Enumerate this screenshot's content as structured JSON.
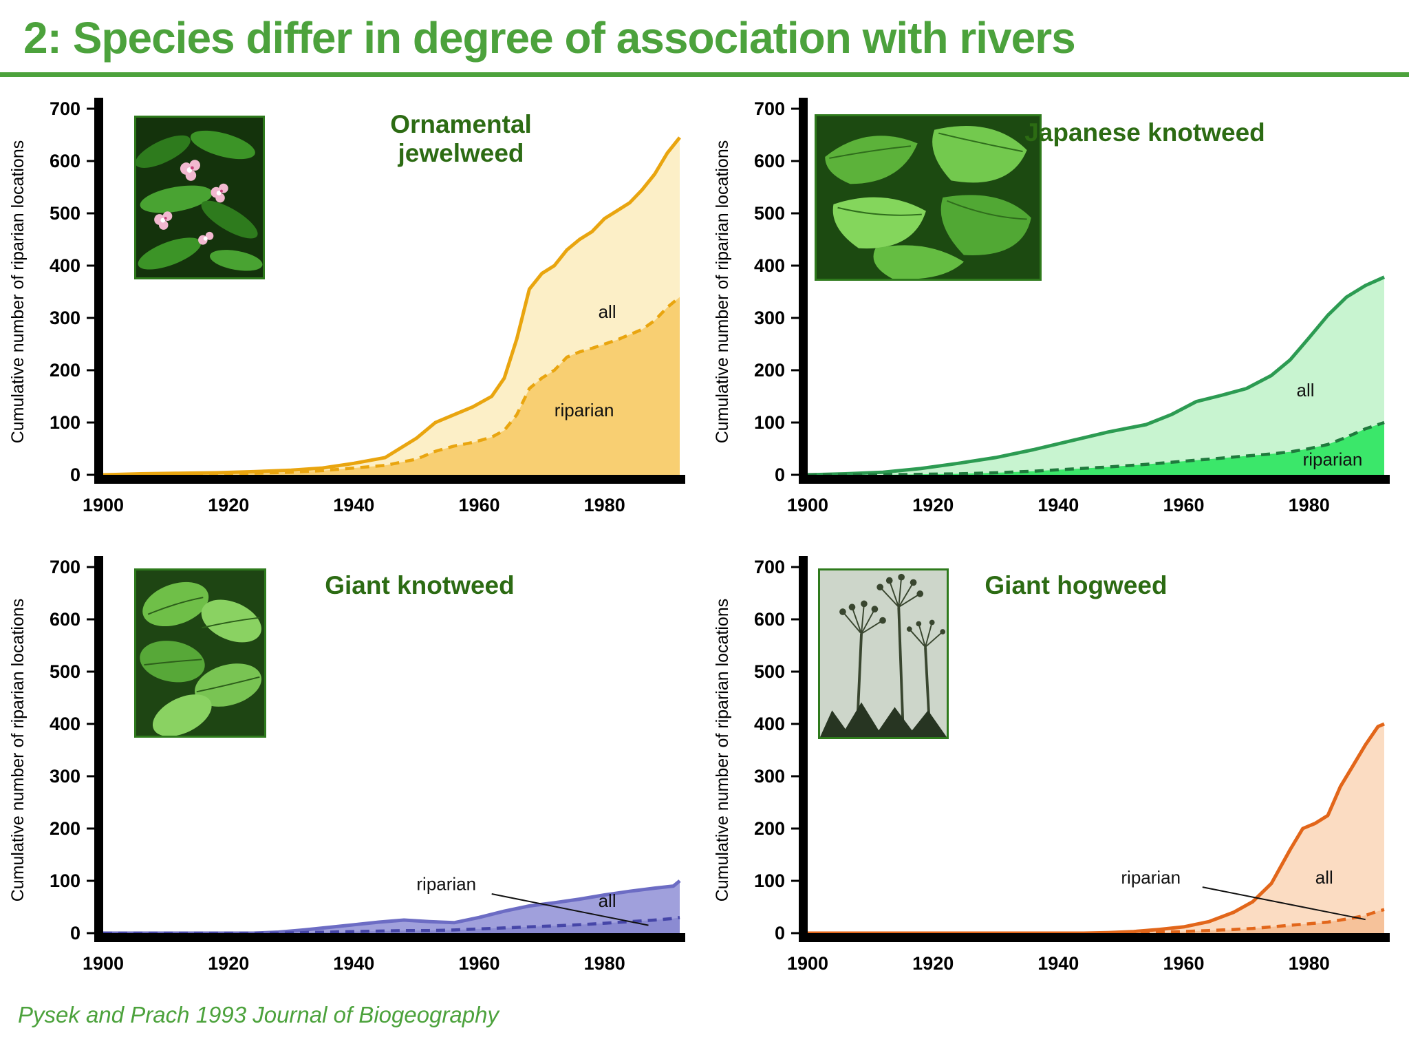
{
  "slide": {
    "title": "2: Species differ in degree of association with rivers",
    "citation": "Pysek and Prach 1993 Journal of Biogeography",
    "accent_green": "#4CA23C",
    "chart_title_color": "#2C6B13",
    "axis_color": "#000000"
  },
  "chart_data": [
    {
      "type": "area",
      "title": "Ornamental\njewelweed",
      "ylabel": "Cumulative number of riparian locations",
      "xlabel": "",
      "xlim": [
        1900,
        1992
      ],
      "ylim": [
        0,
        700
      ],
      "yticks": [
        0,
        100,
        200,
        300,
        400,
        500,
        600,
        700
      ],
      "xticks": [
        1900,
        1920,
        1940,
        1960,
        1980
      ],
      "grid": false,
      "legend_position": "inline-labels",
      "colors": {
        "line": "#E9A50F",
        "all_fill": "#FCEFC7",
        "riparian_fill": "#F8CF72",
        "dash_line": "#E9A50F"
      },
      "x": [
        1900,
        1906,
        1912,
        1918,
        1924,
        1930,
        1935,
        1940,
        1945,
        1950,
        1953,
        1956,
        1959,
        1962,
        1964,
        1966,
        1968,
        1970,
        1972,
        1974,
        1976,
        1978,
        1980,
        1982,
        1984,
        1986,
        1988,
        1990,
        1992
      ],
      "series": [
        {
          "name": "all",
          "style": "solid",
          "values": [
            0,
            2,
            3,
            4,
            6,
            9,
            13,
            22,
            33,
            70,
            100,
            115,
            130,
            150,
            185,
            260,
            355,
            385,
            400,
            430,
            450,
            465,
            490,
            505,
            520,
            545,
            575,
            615,
            645
          ],
          "label": {
            "text": "all",
            "x": 1979,
            "y": 300
          }
        },
        {
          "name": "riparian",
          "style": "dashed",
          "values": [
            0,
            0,
            1,
            2,
            3,
            5,
            8,
            13,
            18,
            30,
            45,
            55,
            62,
            72,
            85,
            115,
            165,
            185,
            200,
            225,
            235,
            242,
            250,
            258,
            268,
            278,
            295,
            320,
            340
          ],
          "label": {
            "text": "riparian",
            "x": 1972,
            "y": 112
          }
        }
      ]
    },
    {
      "type": "area",
      "title": "Japanese knotweed",
      "ylabel": "Cumulative number of riparian locations",
      "xlabel": "",
      "xlim": [
        1900,
        1992
      ],
      "ylim": [
        0,
        700
      ],
      "yticks": [
        0,
        100,
        200,
        300,
        400,
        500,
        600,
        700
      ],
      "xticks": [
        1900,
        1920,
        1940,
        1960,
        1980
      ],
      "grid": false,
      "legend_position": "inline-labels",
      "colors": {
        "line": "#2C9B52",
        "all_fill": "#C8F4D0",
        "riparian_fill": "#3BE76A",
        "dash_line": "#1F7A3D"
      },
      "x": [
        1900,
        1906,
        1912,
        1918,
        1924,
        1930,
        1936,
        1942,
        1948,
        1954,
        1958,
        1962,
        1966,
        1970,
        1974,
        1977,
        1980,
        1983,
        1986,
        1989,
        1992
      ],
      "series": [
        {
          "name": "all",
          "style": "solid",
          "values": [
            0,
            2,
            5,
            12,
            22,
            33,
            48,
            65,
            82,
            96,
            115,
            140,
            152,
            165,
            190,
            220,
            262,
            305,
            340,
            362,
            378
          ],
          "label": {
            "text": "all",
            "x": 1978,
            "y": 150
          }
        },
        {
          "name": "riparian",
          "style": "dashed",
          "values": [
            0,
            0,
            0,
            1,
            2,
            4,
            7,
            11,
            15,
            20,
            24,
            28,
            32,
            36,
            40,
            44,
            50,
            58,
            72,
            88,
            100
          ],
          "label": {
            "text": "riparian",
            "x": 1979,
            "y": 18
          }
        }
      ]
    },
    {
      "type": "area",
      "title": "Giant knotweed",
      "ylabel": "Cumulative number of riparian locations",
      "xlabel": "",
      "xlim": [
        1900,
        1992
      ],
      "ylim": [
        0,
        700
      ],
      "yticks": [
        0,
        100,
        200,
        300,
        400,
        500,
        600,
        700
      ],
      "xticks": [
        1900,
        1920,
        1940,
        1960,
        1980
      ],
      "grid": false,
      "legend_position": "inline-labels",
      "colors": {
        "line": "#6C6CC4",
        "all_fill": "#A0A0DC",
        "riparian_fill": "#8B8BD2",
        "dash_line": "#4646A8"
      },
      "x": [
        1900,
        1924,
        1928,
        1932,
        1936,
        1940,
        1944,
        1948,
        1952,
        1956,
        1960,
        1964,
        1968,
        1972,
        1976,
        1980,
        1984,
        1988,
        1991,
        1992
      ],
      "series": [
        {
          "name": "all",
          "style": "solid",
          "values": [
            0,
            0,
            2,
            6,
            11,
            16,
            21,
            25,
            22,
            20,
            30,
            42,
            52,
            58,
            65,
            73,
            80,
            86,
            90,
            100
          ],
          "label": {
            "text": "all",
            "x": 1979,
            "y": 50
          }
        },
        {
          "name": "riparian",
          "style": "dashed",
          "values": [
            0,
            0,
            0,
            1,
            2,
            3,
            4,
            5,
            5,
            6,
            8,
            10,
            12,
            14,
            16,
            19,
            22,
            25,
            28,
            30
          ],
          "label": {
            "text": "riparian",
            "x": 1950,
            "y": 82
          },
          "pointer": {
            "x1": 1962,
            "y1": 75,
            "x2": 1987,
            "y2": 15
          }
        }
      ]
    },
    {
      "type": "area",
      "title": "Giant hogweed",
      "ylabel": "Cumulative number of riparian locations",
      "xlabel": "",
      "xlim": [
        1900,
        1992
      ],
      "ylim": [
        0,
        700
      ],
      "yticks": [
        0,
        100,
        200,
        300,
        400,
        500,
        600,
        700
      ],
      "xticks": [
        1900,
        1920,
        1940,
        1960,
        1980
      ],
      "grid": false,
      "legend_position": "inline-labels",
      "colors": {
        "line": "#E2661A",
        "all_fill": "#FBDCC2",
        "riparian_fill": "#F6C29A",
        "dash_line": "#E2661A"
      },
      "x": [
        1900,
        1944,
        1948,
        1952,
        1956,
        1960,
        1964,
        1968,
        1971,
        1974,
        1977,
        1979,
        1981,
        1983,
        1985,
        1987,
        1989,
        1991,
        1992
      ],
      "series": [
        {
          "name": "all",
          "style": "solid",
          "values": [
            0,
            0,
            1,
            3,
            7,
            12,
            22,
            40,
            60,
            95,
            160,
            200,
            210,
            225,
            280,
            320,
            360,
            395,
            400
          ],
          "label": {
            "text": "all",
            "x": 1981,
            "y": 95
          }
        },
        {
          "name": "riparian",
          "style": "dashed",
          "values": [
            0,
            0,
            0,
            1,
            2,
            3,
            5,
            7,
            9,
            12,
            15,
            17,
            19,
            21,
            25,
            29,
            34,
            42,
            45
          ],
          "label": {
            "text": "riparian",
            "x": 1950,
            "y": 95
          },
          "pointer": {
            "x1": 1963,
            "y1": 88,
            "x2": 1989,
            "y2": 26
          }
        }
      ]
    }
  ]
}
